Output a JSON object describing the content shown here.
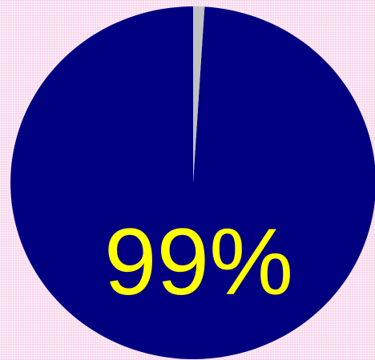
{
  "chart_data": {
    "type": "pie",
    "slices": [
      {
        "value": 99,
        "color": "#000080"
      },
      {
        "value": 1,
        "color": "#c0c0c0"
      }
    ],
    "label": "99%",
    "label_color": "#ffff00"
  },
  "colors": {
    "background": "#f8d8ec"
  }
}
